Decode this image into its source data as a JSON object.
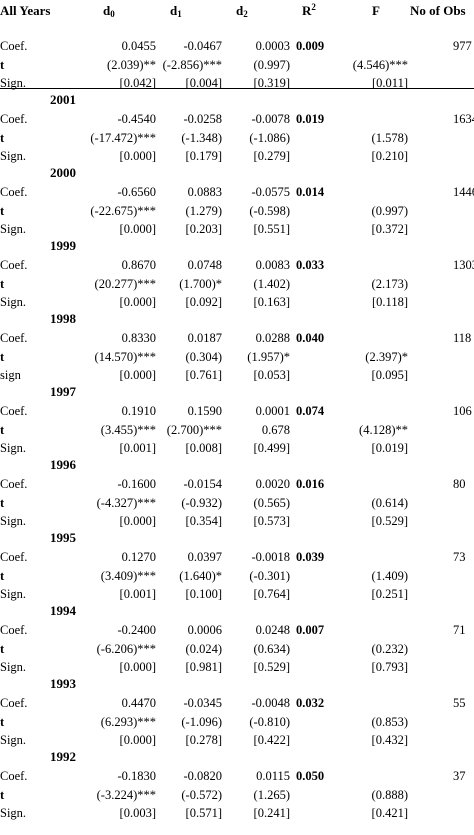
{
  "headers": {
    "label": "All Years",
    "d0_base": "d",
    "d0_sub": "0",
    "d1_base": "d",
    "d1_sub": "1",
    "d2_base": "d",
    "d2_sub": "2",
    "r2_base": "R",
    "r2_sup": "2",
    "f": "F",
    "obs": "No of Obs"
  },
  "blocks": [
    {
      "year": "",
      "rows": [
        {
          "label": "Coef.",
          "label_bold": false,
          "d0": "0.0455",
          "d1": "-0.0467",
          "d2": "0.0003",
          "r2": "0.009",
          "f": "",
          "obs": "977"
        },
        {
          "label": "t",
          "label_bold": true,
          "d0": "(2.039)**",
          "d1": "(-2.856)***",
          "d2": "(0.997)",
          "r2": "",
          "f": "(4.546)***",
          "obs": ""
        },
        {
          "label": "Sign.",
          "label_bold": false,
          "d0": "[0.042]",
          "d1": "[0.004]",
          "d2": "[0.319]",
          "r2": "",
          "f": "[0.011]",
          "obs": ""
        }
      ]
    },
    {
      "year": "2001",
      "rows": [
        {
          "label": "Coef.",
          "label_bold": false,
          "d0": "-0.4540",
          "d1": "-0.0258",
          "d2": "-0.0078",
          "r2": "0.019",
          "f": "",
          "obs": "1634"
        },
        {
          "label": "t",
          "label_bold": true,
          "d0": "(-17.472)***",
          "d1": "(-1.348)",
          "d2": "(-1.086)",
          "r2": "",
          "f": "(1.578)",
          "obs": ""
        },
        {
          "label": "Sign.",
          "label_bold": false,
          "d0": "[0.000]",
          "d1": "[0.179]",
          "d2": "[0.279]",
          "r2": "",
          "f": "[0.210]",
          "obs": ""
        }
      ]
    },
    {
      "year": "2000",
      "rows": [
        {
          "label": "Coef.",
          "label_bold": false,
          "d0": "-0.6560",
          "d1": "0.0883",
          "d2": "-0.0575",
          "r2": "0.014",
          "f": "",
          "obs": "1446"
        },
        {
          "label": "t",
          "label_bold": true,
          "d0": "(-22.675)***",
          "d1": "(1.279)",
          "d2": "(-0.598)",
          "r2": "",
          "f": "(0.997)",
          "obs": ""
        },
        {
          "label": "Sign.",
          "label_bold": false,
          "d0": "[0.000]",
          "d1": "[0.203]",
          "d2": "[0.551]",
          "r2": "",
          "f": "[0.372]",
          "obs": ""
        }
      ]
    },
    {
      "year": "1999",
      "rows": [
        {
          "label": "Coef.",
          "label_bold": false,
          "d0": "0.8670",
          "d1": "0.0748",
          "d2": "0.0083",
          "r2": "0.033",
          "f": "",
          "obs": "1303"
        },
        {
          "label": "t",
          "label_bold": true,
          "d0": "(20.277)***",
          "d1": "(1.700)*",
          "d2": "(1.402)",
          "r2": "",
          "f": "(2.173)",
          "obs": ""
        },
        {
          "label": "Sign.",
          "label_bold": false,
          "d0": "[0.000]",
          "d1": "[0.092]",
          "d2": "[0.163]",
          "r2": "",
          "f": "[0.118]",
          "obs": ""
        }
      ]
    },
    {
      "year": "1998",
      "rows": [
        {
          "label": "Coef.",
          "label_bold": false,
          "d0": "0.8330",
          "d1": "0.0187",
          "d2": "0.0288",
          "r2": "0.040",
          "f": "",
          "obs": "118"
        },
        {
          "label": "t",
          "label_bold": true,
          "d0": "(14.570)***",
          "d1": "(0.304)",
          "d2": "(1.957)*",
          "r2": "",
          "f": "(2.397)*",
          "obs": ""
        },
        {
          "label": "sign",
          "label_bold": false,
          "d0": "[0.000]",
          "d1": "[0.761]",
          "d2": "[0.053]",
          "r2": "",
          "f": "[0.095]",
          "obs": ""
        }
      ]
    },
    {
      "year": "1997",
      "rows": [
        {
          "label": "Coef.",
          "label_bold": false,
          "d0": "0.1910",
          "d1": "0.1590",
          "d2": "0.0001",
          "r2": "0.074",
          "f": "",
          "obs": "106"
        },
        {
          "label": "t",
          "label_bold": true,
          "d0": "(3.455)***",
          "d1": "(2.700)***",
          "d2": "0.678",
          "r2": "",
          "f": "(4.128)**",
          "obs": ""
        },
        {
          "label": "Sign.",
          "label_bold": false,
          "d0": "[0.001]",
          "d1": "[0.008]",
          "d2": "[0.499]",
          "r2": "",
          "f": "[0.019]",
          "obs": ""
        }
      ]
    },
    {
      "year": "1996",
      "rows": [
        {
          "label": "Coef.",
          "label_bold": false,
          "d0": "-0.1600",
          "d1": "-0.0154",
          "d2": "0.0020",
          "r2": "0.016",
          "f": "",
          "obs": "80"
        },
        {
          "label": "t",
          "label_bold": true,
          "d0": "(-4.327)***",
          "d1": "(-0.932)",
          "d2": "(0.565)",
          "r2": "",
          "f": "(0.614)",
          "obs": ""
        },
        {
          "label": "Sign.",
          "label_bold": false,
          "d0": "[0.000]",
          "d1": "[0.354]",
          "d2": "[0.573]",
          "r2": "",
          "f": "[0.529]",
          "obs": ""
        }
      ]
    },
    {
      "year": "1995",
      "rows": [
        {
          "label": "Coef.",
          "label_bold": false,
          "d0": "0.1270",
          "d1": "0.0397",
          "d2": "-0.0018",
          "r2": "0.039",
          "f": "",
          "obs": "73"
        },
        {
          "label": "t",
          "label_bold": true,
          "d0": "(3.409)***",
          "d1": "(1.640)*",
          "d2": "(-0.301)",
          "r2": "",
          "f": "(1.409)",
          "obs": ""
        },
        {
          "label": "Sign.",
          "label_bold": false,
          "d0": "[0.001]",
          "d1": "[0.100]",
          "d2": "[0.764]",
          "r2": "",
          "f": "[0.251]",
          "obs": ""
        }
      ]
    },
    {
      "year": "1994",
      "rows": [
        {
          "label": "Coef.",
          "label_bold": false,
          "d0": "-0.2400",
          "d1": "0.0006",
          "d2": "0.0248",
          "r2": "0.007",
          "f": "",
          "obs": "71"
        },
        {
          "label": "t",
          "label_bold": true,
          "d0": "(-6.206)***",
          "d1": "(0.024)",
          "d2": "(0.634)",
          "r2": "",
          "f": "(0.232)",
          "obs": ""
        },
        {
          "label": "Sign.",
          "label_bold": false,
          "d0": "[0.000]",
          "d1": "[0.981]",
          "d2": "[0.529]",
          "r2": "",
          "f": "[0.793]",
          "obs": ""
        }
      ]
    },
    {
      "year": "1993",
      "rows": [
        {
          "label": "Coef.",
          "label_bold": false,
          "d0": "0.4470",
          "d1": "-0.0345",
          "d2": "-0.0048",
          "r2": "0.032",
          "f": "",
          "obs": "55"
        },
        {
          "label": "t",
          "label_bold": true,
          "d0": "(6.293)***",
          "d1": "(-1.096)",
          "d2": "(-0.810)",
          "r2": "",
          "f": "(0.853)",
          "obs": ""
        },
        {
          "label": "Sign.",
          "label_bold": false,
          "d0": "[0.000]",
          "d1": "[0.278]",
          "d2": "[0.422]",
          "r2": "",
          "f": "[0.432]",
          "obs": ""
        }
      ]
    },
    {
      "year": "1992",
      "rows": [
        {
          "label": "Coef.",
          "label_bold": false,
          "d0": "-0.1830",
          "d1": "-0.0820",
          "d2": "0.0115",
          "r2": "0.050",
          "f": "",
          "obs": "37"
        },
        {
          "label": "t",
          "label_bold": true,
          "d0": "(-3.224)***",
          "d1": "(-0.572)",
          "d2": "(1.265)",
          "r2": "",
          "f": "(0.888)",
          "obs": ""
        },
        {
          "label": "Sign.",
          "label_bold": false,
          "d0": "[0.003]",
          "d1": "[0.571]",
          "d2": "[0.241]",
          "r2": "",
          "f": "[0.421]",
          "obs": ""
        }
      ]
    }
  ]
}
